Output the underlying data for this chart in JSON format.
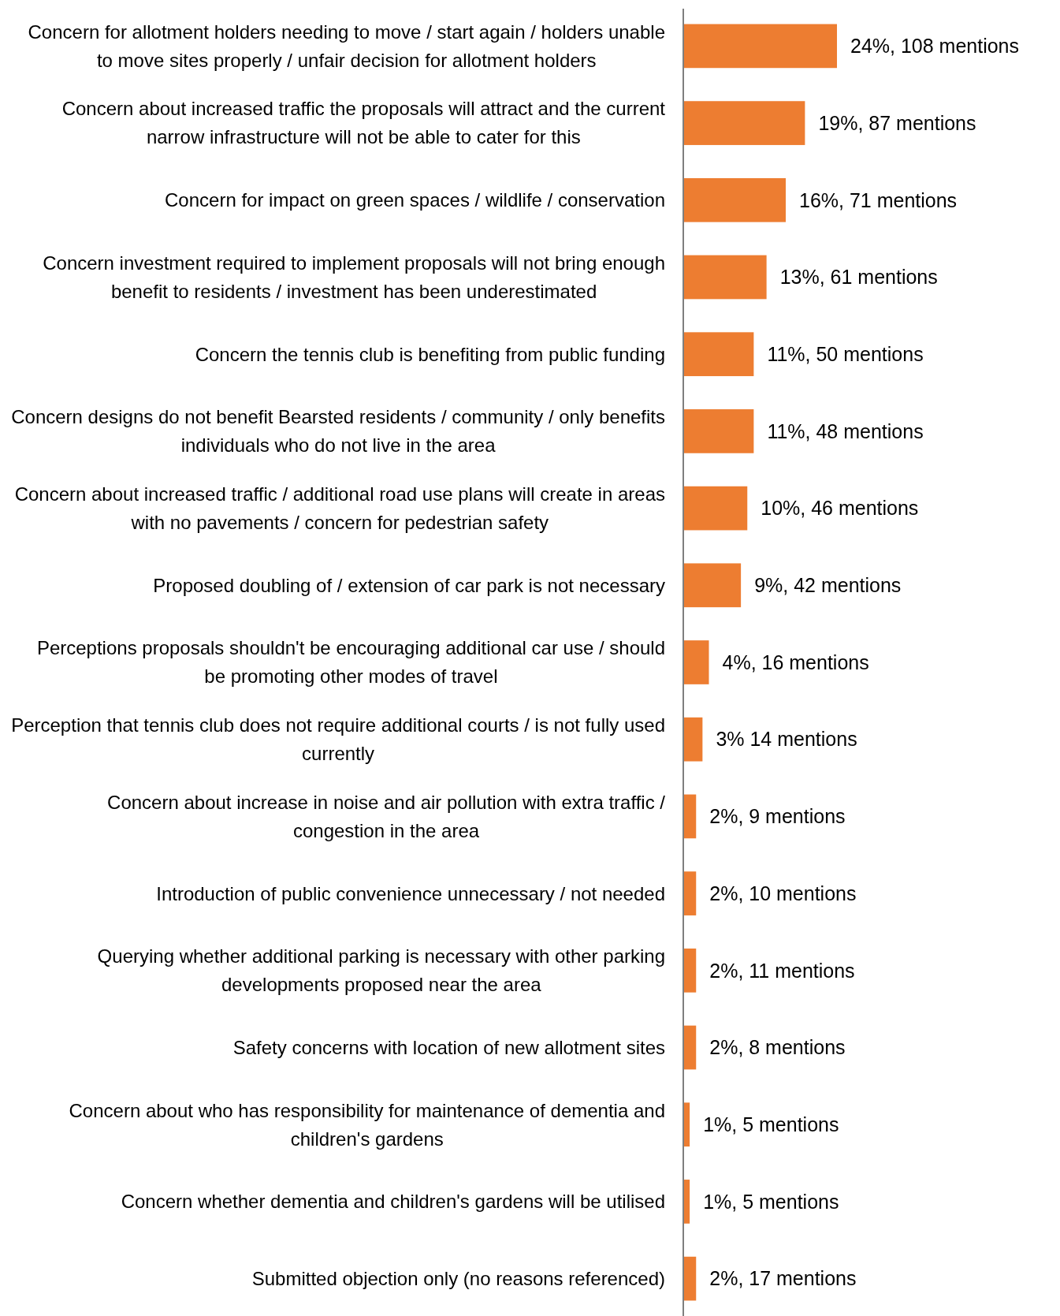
{
  "chart_data": {
    "type": "bar",
    "orientation": "horizontal",
    "color": "#ed7d31",
    "categories": [
      "Concern for allotment holders needing to move / start again / holders unable to move sites properly / unfair decision for allotment holders",
      "Concern about increased traffic the proposals will attract and the current narrow infrastructure will not be able to cater for this",
      "Concern for impact on green spaces / wildlife / conservation",
      "Concern investment required to implement proposals will not bring enough benefit to residents / investment has been underestimated",
      "Concern the tennis club is benefiting from public funding",
      "Concern designs do not benefit Bearsted residents / community / only benefits individuals who do not live in the area",
      "Concern about increased traffic / additional road use plans will create in areas with no pavements / concern for pedestrian safety",
      "Proposed doubling of / extension of car park is not necessary",
      "Perceptions proposals shouldn't be encouraging additional car use / should be promoting other modes of travel",
      "Perception that tennis club does not require additional courts / is not fully used currently",
      "Concern about increase in noise and air pollution with extra traffic / congestion in the area",
      "Introduction of public convenience unnecessary / not needed",
      "Querying whether additional parking is necessary with other parking developments proposed near the area",
      "Safety concerns with location of new allotment sites",
      "Concern about who has responsibility for maintenance of dementia and children's gardens",
      "Concern whether dementia and children's gardens will be utilised",
      "Submitted objection only (no reasons referenced)"
    ],
    "values": [
      24,
      19,
      16,
      13,
      11,
      11,
      10,
      9,
      4,
      3,
      2,
      2,
      2,
      2,
      1,
      1,
      2
    ],
    "value_labels": [
      "24%, 108 mentions",
      "19%, 87 mentions",
      "16%, 71 mentions",
      "13%, 61 mentions",
      "11%, 50 mentions",
      "11%, 48 mentions",
      "10%, 46 mentions",
      "9%, 42 mentions",
      "4%, 16 mentions",
      "3% 14 mentions",
      "2%, 9 mentions",
      "2%, 10 mentions",
      "2%, 11 mentions",
      "2%, 8 mentions",
      "1%, 5 mentions",
      "1%, 5 mentions",
      "2%, 17 mentions"
    ]
  }
}
